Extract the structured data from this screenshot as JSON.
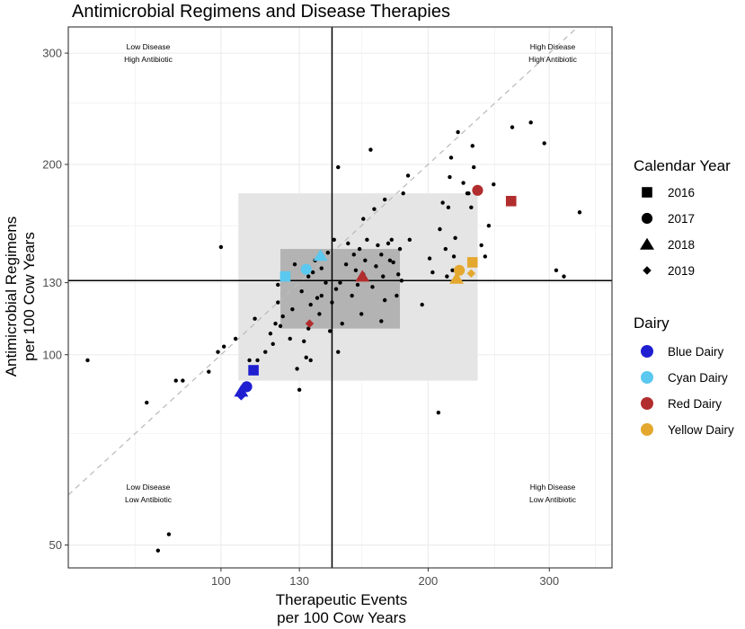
{
  "chart_data": {
    "type": "scatter",
    "title": "Antimicrobial Regimens and Disease Therapies",
    "xlabel": [
      "Therapeutic Events",
      "per 100 Cow Years"
    ],
    "ylabel": [
      "Antimicrobial Regimens",
      "per 100 Cow Years"
    ],
    "x_scale": "log",
    "y_scale": "log",
    "xlim": [
      60,
      370
    ],
    "ylim": [
      46,
      330
    ],
    "x_ticks": [
      100,
      130,
      200,
      300
    ],
    "y_ticks": [
      50,
      100,
      130,
      200,
      300
    ],
    "reference_lines": {
      "x": 145,
      "y": 131
    },
    "diagonal": "y = x (dashed)",
    "shaded_regions": [
      {
        "name": "outer-range",
        "x": [
          106,
          236
        ],
        "y": [
          91,
          180
        ],
        "color": "#e5e5e5"
      },
      {
        "name": "inner-range",
        "x": [
          122,
          182
        ],
        "y": [
          110,
          147
        ],
        "color": "#b3b3b3"
      }
    ],
    "quadrant_labels": [
      {
        "position": "top-left",
        "lines": [
          "Low Disease",
          "High Antibiotic"
        ]
      },
      {
        "position": "top-right",
        "lines": [
          "High Disease",
          "High Antibiotic"
        ]
      },
      {
        "position": "bottom-left",
        "lines": [
          "Low Disease",
          "Low Antibiotic"
        ]
      },
      {
        "position": "bottom-right",
        "lines": [
          "High Disease",
          "Low Antibiotic"
        ]
      }
    ],
    "other_points": [
      [
        64,
        98
      ],
      [
        78,
        84
      ],
      [
        86,
        91
      ],
      [
        88,
        91
      ],
      [
        96,
        94
      ],
      [
        99,
        101
      ],
      [
        101,
        103
      ],
      [
        100,
        148
      ],
      [
        105,
        106
      ],
      [
        110,
        98
      ],
      [
        112,
        114
      ],
      [
        113,
        98
      ],
      [
        116,
        101
      ],
      [
        118,
        108
      ],
      [
        119,
        104
      ],
      [
        120,
        112
      ],
      [
        121,
        121
      ],
      [
        121,
        129
      ],
      [
        122,
        111
      ],
      [
        123,
        115
      ],
      [
        126,
        106
      ],
      [
        127,
        118
      ],
      [
        128,
        139
      ],
      [
        129,
        95
      ],
      [
        130,
        88
      ],
      [
        131,
        126
      ],
      [
        132,
        105
      ],
      [
        133,
        99
      ],
      [
        134,
        110
      ],
      [
        134,
        133
      ],
      [
        135,
        98
      ],
      [
        135,
        120
      ],
      [
        136,
        135
      ],
      [
        137,
        141
      ],
      [
        138,
        123
      ],
      [
        139,
        116
      ],
      [
        140,
        124
      ],
      [
        140,
        137
      ],
      [
        142,
        130
      ],
      [
        143,
        145
      ],
      [
        144,
        109
      ],
      [
        145,
        121
      ],
      [
        146,
        152
      ],
      [
        147,
        127
      ],
      [
        148,
        101
      ],
      [
        148,
        198
      ],
      [
        149,
        130
      ],
      [
        150,
        112
      ],
      [
        152,
        139
      ],
      [
        153,
        150
      ],
      [
        155,
        124
      ],
      [
        156,
        144
      ],
      [
        157,
        136
      ],
      [
        158,
        129
      ],
      [
        159,
        147
      ],
      [
        160,
        116
      ],
      [
        161,
        134
      ],
      [
        161,
        164
      ],
      [
        162,
        141
      ],
      [
        163,
        152
      ],
      [
        165,
        211
      ],
      [
        166,
        128
      ],
      [
        167,
        170
      ],
      [
        168,
        138
      ],
      [
        169,
        149
      ],
      [
        171,
        113
      ],
      [
        171,
        144
      ],
      [
        172,
        133
      ],
      [
        173,
        122
      ],
      [
        173,
        176
      ],
      [
        175,
        150
      ],
      [
        176,
        141
      ],
      [
        177,
        152
      ],
      [
        178,
        140
      ],
      [
        180,
        124
      ],
      [
        181,
        134
      ],
      [
        182,
        147
      ],
      [
        183,
        131
      ],
      [
        184,
        180
      ],
      [
        187,
        192
      ],
      [
        188,
        152
      ],
      [
        196,
        120
      ],
      [
        201,
        142
      ],
      [
        203,
        135
      ],
      [
        207,
        81
      ],
      [
        208,
        158
      ],
      [
        210,
        174
      ],
      [
        212,
        147
      ],
      [
        213,
        133
      ],
      [
        214,
        171
      ],
      [
        215,
        191
      ],
      [
        216,
        205
      ],
      [
        217,
        136
      ],
      [
        218,
        143
      ],
      [
        219,
        153
      ],
      [
        221,
        225
      ],
      [
        225,
        187
      ],
      [
        228,
        180
      ],
      [
        229,
        180
      ],
      [
        231,
        171
      ],
      [
        232,
        214
      ],
      [
        233,
        198
      ],
      [
        239,
        149
      ],
      [
        242,
        143
      ],
      [
        245,
        160
      ],
      [
        249,
        186
      ],
      [
        265,
        229
      ],
      [
        282,
        233
      ],
      [
        295,
        216
      ],
      [
        307,
        136
      ],
      [
        315,
        133
      ],
      [
        332,
        168
      ],
      [
        81,
        49
      ],
      [
        84,
        52
      ]
    ],
    "series": [
      {
        "name": "Blue Dairy",
        "color": "#1f1fd1",
        "points": [
          {
            "year": "2016",
            "x": 111.5,
            "y": 94.5
          },
          {
            "year": "2017",
            "x": 109,
            "y": 89
          },
          {
            "year": "2018",
            "x": 107,
            "y": 87.5
          },
          {
            "year": "2019",
            "x": 107,
            "y": 86
          }
        ]
      },
      {
        "name": "Cyan Dairy",
        "color": "#5bc8ef",
        "points": [
          {
            "year": "2016",
            "x": 124,
            "y": 133
          },
          {
            "year": "2017",
            "x": 133,
            "y": 136.5
          },
          {
            "year": "2018",
            "x": 139.5,
            "y": 143.5
          }
        ]
      },
      {
        "name": "Red Dairy",
        "color": "#b22d2d",
        "points": [
          {
            "year": "2016",
            "x": 264,
            "y": 175
          },
          {
            "year": "2017",
            "x": 236,
            "y": 182
          },
          {
            "year": "2018",
            "x": 160.5,
            "y": 133
          },
          {
            "year": "2019",
            "x": 134.5,
            "y": 112
          }
        ]
      },
      {
        "name": "Yellow Dairy",
        "color": "#e4a82f",
        "points": [
          {
            "year": "2016",
            "x": 232,
            "y": 140
          },
          {
            "year": "2017",
            "x": 222,
            "y": 136
          },
          {
            "year": "2018",
            "x": 220,
            "y": 132
          },
          {
            "year": "2019",
            "x": 231,
            "y": 134.5
          }
        ]
      }
    ],
    "legend": {
      "shape_title": "Calendar Year",
      "shapes": [
        {
          "label": "2016",
          "shape": "square"
        },
        {
          "label": "2017",
          "shape": "circle"
        },
        {
          "label": "2018",
          "shape": "triangle"
        },
        {
          "label": "2019",
          "shape": "diamond"
        }
      ],
      "color_title": "Dairy",
      "colors": [
        {
          "label": "Blue Dairy",
          "color": "#1f1fd1"
        },
        {
          "label": "Cyan Dairy",
          "color": "#5bc8ef"
        },
        {
          "label": "Red Dairy",
          "color": "#b22d2d"
        },
        {
          "label": "Yellow Dairy",
          "color": "#e4a82f"
        }
      ],
      "placement": "right"
    }
  }
}
